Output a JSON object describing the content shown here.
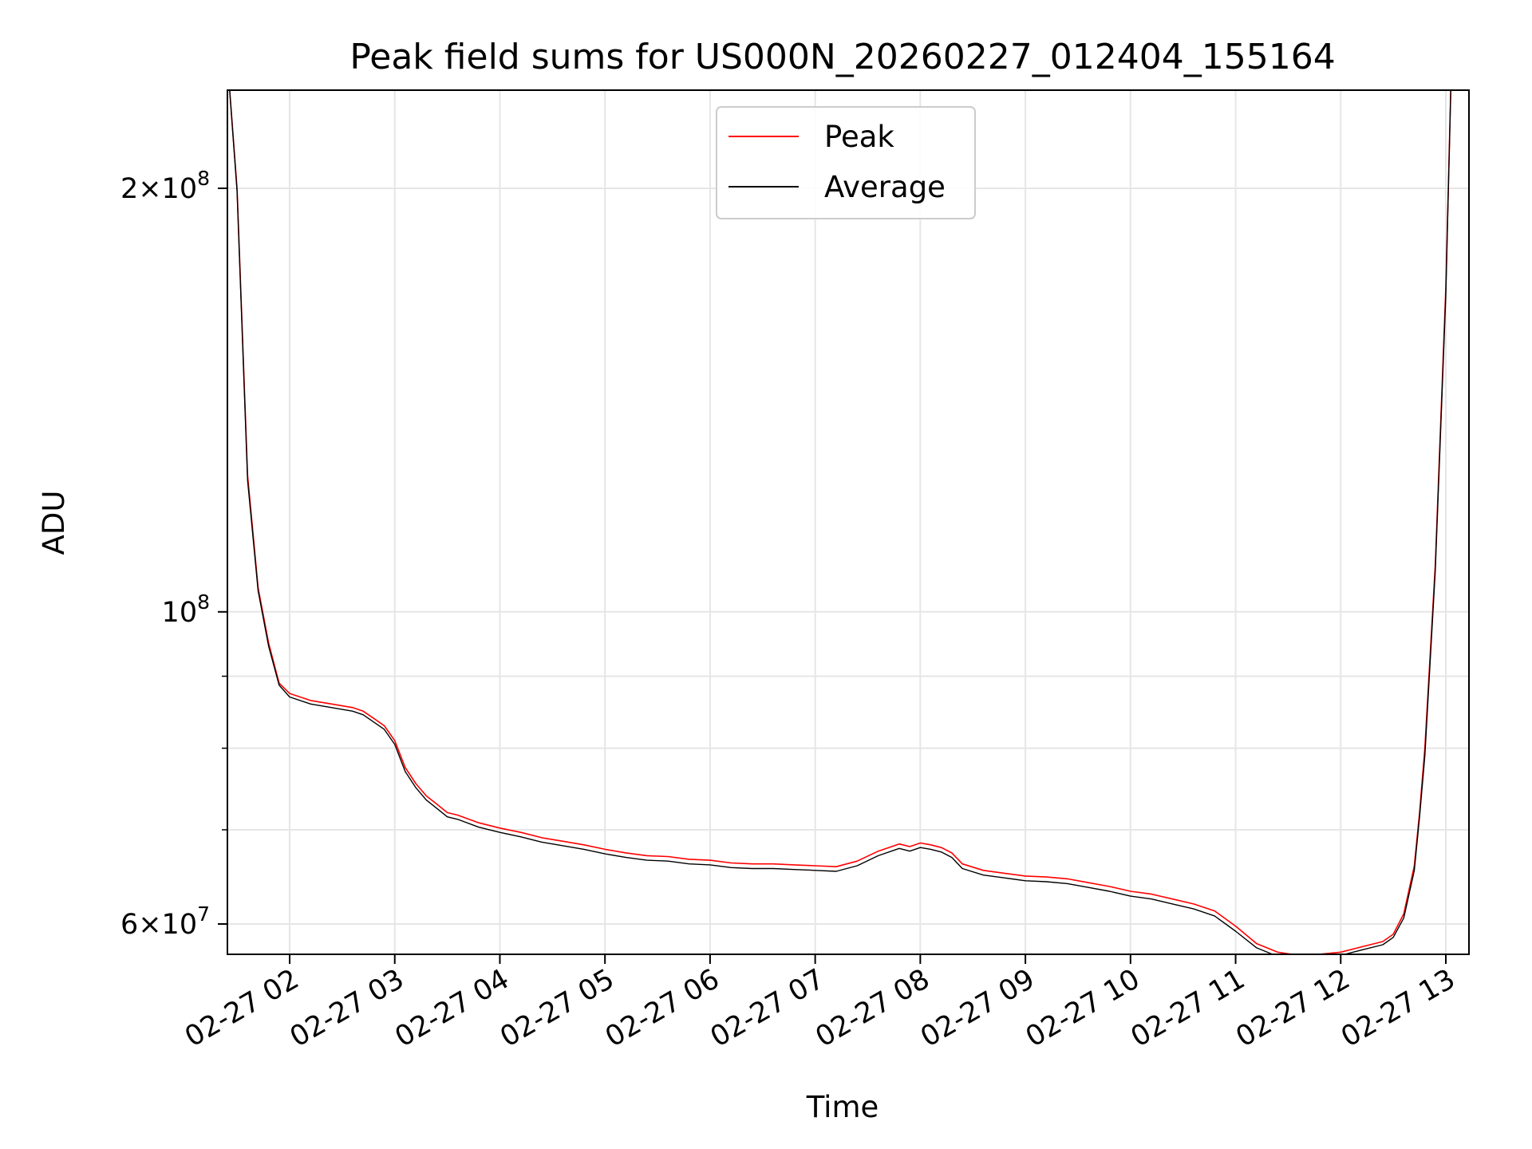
{
  "chart_data": {
    "type": "line",
    "title": "Peak field sums for US000N_20260227_012404_155164",
    "xlabel": "Time",
    "ylabel": "ADU",
    "yscale": "log",
    "ylim": [
      57000000,
      240000000
    ],
    "xlim": [
      1.4,
      13.0
    ],
    "grid": true,
    "legend_position": "top-center",
    "x_ticks": [
      {
        "value": 2,
        "label": "02-27 02"
      },
      {
        "value": 3,
        "label": "02-27 03"
      },
      {
        "value": 4,
        "label": "02-27 04"
      },
      {
        "value": 5,
        "label": "02-27 05"
      },
      {
        "value": 6,
        "label": "02-27 06"
      },
      {
        "value": 7,
        "label": "02-27 07"
      },
      {
        "value": 8,
        "label": "02-27 08"
      },
      {
        "value": 9,
        "label": "02-27 09"
      },
      {
        "value": 10,
        "label": "02-27 10"
      },
      {
        "value": 11,
        "label": "02-27 11"
      },
      {
        "value": 12,
        "label": "02-27 12"
      },
      {
        "value": 13,
        "label": "02-27 13"
      }
    ],
    "y_major_ticks": [
      {
        "value": 60000000,
        "mantissa": "6",
        "exponent": "7"
      },
      {
        "value": 100000000,
        "mantissa": "",
        "exponent": "8"
      },
      {
        "value": 200000000,
        "mantissa": "2",
        "exponent": "8"
      }
    ],
    "y_minor_ticks": [
      70000000,
      80000000,
      90000000
    ],
    "x": [
      1.42,
      1.5,
      1.6,
      1.7,
      1.8,
      1.9,
      2.0,
      2.2,
      2.4,
      2.6,
      2.7,
      2.8,
      2.9,
      3.0,
      3.1,
      3.2,
      3.3,
      3.4,
      3.5,
      3.6,
      3.8,
      4.0,
      4.2,
      4.4,
      4.6,
      4.8,
      5.0,
      5.2,
      5.4,
      5.6,
      5.8,
      6.0,
      6.2,
      6.4,
      6.6,
      6.8,
      7.0,
      7.2,
      7.4,
      7.6,
      7.8,
      7.9,
      8.0,
      8.1,
      8.2,
      8.3,
      8.4,
      8.6,
      8.8,
      9.0,
      9.2,
      9.4,
      9.6,
      9.8,
      10.0,
      10.2,
      10.4,
      10.6,
      10.8,
      11.0,
      11.2,
      11.4,
      11.6,
      11.8,
      12.0,
      12.2,
      12.4,
      12.5,
      12.6,
      12.7,
      12.75,
      12.8,
      12.9,
      13.0,
      13.05
    ],
    "series": [
      {
        "name": "Peak",
        "color": "#ff0000",
        "values": [
          240000000,
          200000000,
          125000000,
          104000000,
          95000000,
          89000000,
          87500000,
          86500000,
          86000000,
          85500000,
          85000000,
          84000000,
          83000000,
          81000000,
          77500000,
          75500000,
          74000000,
          73000000,
          72000000,
          71700000,
          70800000,
          70200000,
          69700000,
          69100000,
          68700000,
          68300000,
          67800000,
          67400000,
          67100000,
          67000000,
          66700000,
          66600000,
          66300000,
          66200000,
          66200000,
          66100000,
          66000000,
          65900000,
          66500000,
          67600000,
          68400000,
          68100000,
          68500000,
          68300000,
          68000000,
          67400000,
          66200000,
          65500000,
          65200000,
          64900000,
          64800000,
          64600000,
          64200000,
          63800000,
          63300000,
          63000000,
          62500000,
          62000000,
          61300000,
          59800000,
          58100000,
          57300000,
          57000000,
          57100000,
          57300000,
          57800000,
          58300000,
          59000000,
          61000000,
          66000000,
          72000000,
          80000000,
          108000000,
          170000000,
          240000000
        ]
      },
      {
        "name": "Average",
        "color": "#000000",
        "values": [
          240000000,
          199000000,
          124000000,
          103500000,
          94500000,
          88700000,
          87000000,
          86000000,
          85500000,
          85000000,
          84500000,
          83500000,
          82500000,
          80500000,
          77000000,
          75000000,
          73500000,
          72500000,
          71500000,
          71200000,
          70300000,
          69700000,
          69200000,
          68600000,
          68200000,
          67800000,
          67300000,
          66900000,
          66600000,
          66500000,
          66200000,
          66100000,
          65800000,
          65700000,
          65700000,
          65600000,
          65500000,
          65400000,
          66000000,
          67100000,
          67900000,
          67600000,
          68000000,
          67800000,
          67500000,
          66900000,
          65700000,
          65000000,
          64700000,
          64400000,
          64300000,
          64100000,
          63700000,
          63300000,
          62800000,
          62500000,
          62000000,
          61500000,
          60800000,
          59300000,
          57700000,
          56900000,
          56700000,
          56800000,
          57000000,
          57500000,
          58000000,
          58700000,
          60600000,
          65500000,
          71500000,
          79000000,
          107000000,
          168000000,
          240000000
        ]
      }
    ]
  }
}
